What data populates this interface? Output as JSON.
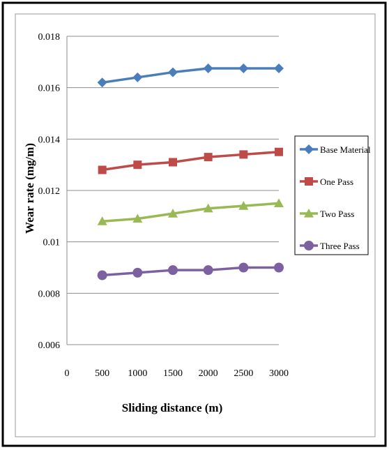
{
  "chart_data": {
    "type": "line",
    "title": "",
    "xlabel": "Sliding distance (m)",
    "ylabel": "Wear rate (mg/m)",
    "x_tick_labels": [
      "0",
      "500",
      "1000",
      "1500",
      "2000",
      "2500",
      "3000"
    ],
    "y_tick_labels": [
      "0.006",
      "0.008",
      "0.01",
      "0.012",
      "0.014",
      "0.016",
      "0.018"
    ],
    "ylim": [
      0.006,
      0.018
    ],
    "grid": "horizontal",
    "legend_position": "right",
    "x": [
      500,
      1000,
      1500,
      2000,
      2500,
      3000
    ],
    "series": [
      {
        "name": "Base Material",
        "color": "#4a7ebb",
        "marker": "diamond",
        "values": [
          0.0162,
          0.0164,
          0.0166,
          0.01675,
          0.01675,
          0.01675
        ]
      },
      {
        "name": "One Pass",
        "color": "#be4b48",
        "marker": "square",
        "values": [
          0.0128,
          0.013,
          0.0131,
          0.0133,
          0.0134,
          0.0135
        ]
      },
      {
        "name": "Two Pass",
        "color": "#98b954",
        "marker": "triangle",
        "values": [
          0.0108,
          0.0109,
          0.0111,
          0.0113,
          0.0114,
          0.0115
        ]
      },
      {
        "name": "Three Pass",
        "color": "#7d60a0",
        "marker": "circle",
        "values": [
          0.0087,
          0.0088,
          0.0089,
          0.0089,
          0.009,
          0.009
        ]
      }
    ]
  }
}
